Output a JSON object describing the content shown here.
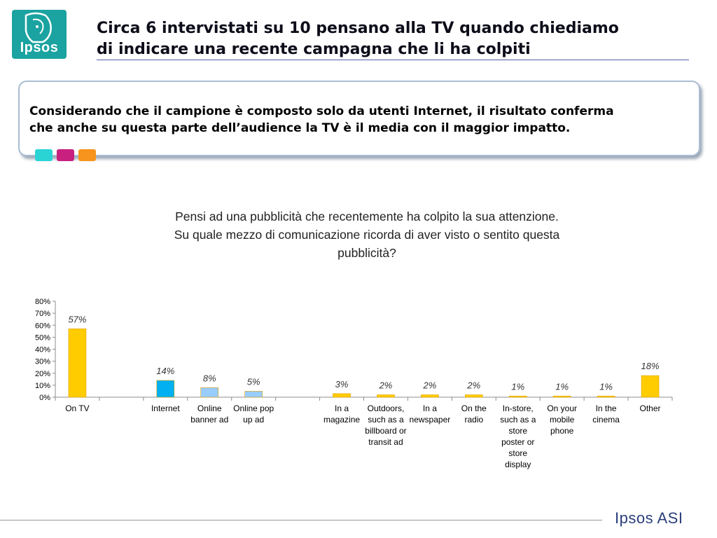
{
  "header": {
    "logo_text": "Ipsos",
    "title_line1": "Circa 6 intervistati su 10 pensano alla TV quando chiediamo",
    "title_line2": "di indicare una recente campagna che li ha colpiti"
  },
  "callout": {
    "line1": "Considerando che il campione è composto solo da utenti Internet, il risultato conferma",
    "line2": "che anche su questa parte dell’audience la TV è il media con il maggior impatto.",
    "swatch_colors": [
      "#2ad4d4",
      "#c8207f",
      "#f7941d"
    ]
  },
  "question": {
    "line1": "Pensi ad una pubblicità che recentemente ha colpito la sua attenzione.",
    "line2": "Su quale mezzo di comunicazione ricorda di aver visto o sentito questa",
    "line3": "pubblicità?"
  },
  "chart_data": {
    "type": "bar",
    "categories": [
      [
        "On TV"
      ],
      [
        ""
      ],
      [
        "Internet"
      ],
      [
        "Online",
        "banner ad"
      ],
      [
        "Online pop",
        "up ad"
      ],
      [
        ""
      ],
      [
        "In a",
        "magazine"
      ],
      [
        "Outdoors,",
        "such as a",
        "billboard or",
        "transit ad"
      ],
      [
        "In a",
        "newspaper"
      ],
      [
        "On the",
        "radio"
      ],
      [
        "In-store,",
        "such as a",
        "store",
        "poster or",
        "store",
        "display"
      ],
      [
        "On your",
        "mobile",
        "phone"
      ],
      [
        "In the",
        "cinema"
      ],
      [
        "Other"
      ]
    ],
    "values": [
      57,
      null,
      14,
      8,
      5,
      null,
      3,
      2,
      2,
      2,
      1,
      1,
      1,
      18
    ],
    "data_labels": [
      "57%",
      "",
      "14%",
      "8%",
      "5%",
      "",
      "3%",
      "2%",
      "2%",
      "2%",
      "1%",
      "1%",
      "1%",
      "18%"
    ],
    "colors": [
      "#ffcc00",
      "",
      "#00b0f0",
      "#99ccff",
      "#99ccff",
      "",
      "#ffcc00",
      "#ffcc00",
      "#ffcc00",
      "#ffcc00",
      "#ffcc00",
      "#ffcc00",
      "#ffcc00",
      "#ffcc00"
    ],
    "ylim": [
      0,
      80
    ],
    "yticks": [
      "0%",
      "10%",
      "20%",
      "30%",
      "40%",
      "50%",
      "60%",
      "70%",
      "80%"
    ],
    "grid": false,
    "xlabel": "",
    "ylabel": ""
  },
  "footer": {
    "brand": "Ipsos ASI"
  }
}
